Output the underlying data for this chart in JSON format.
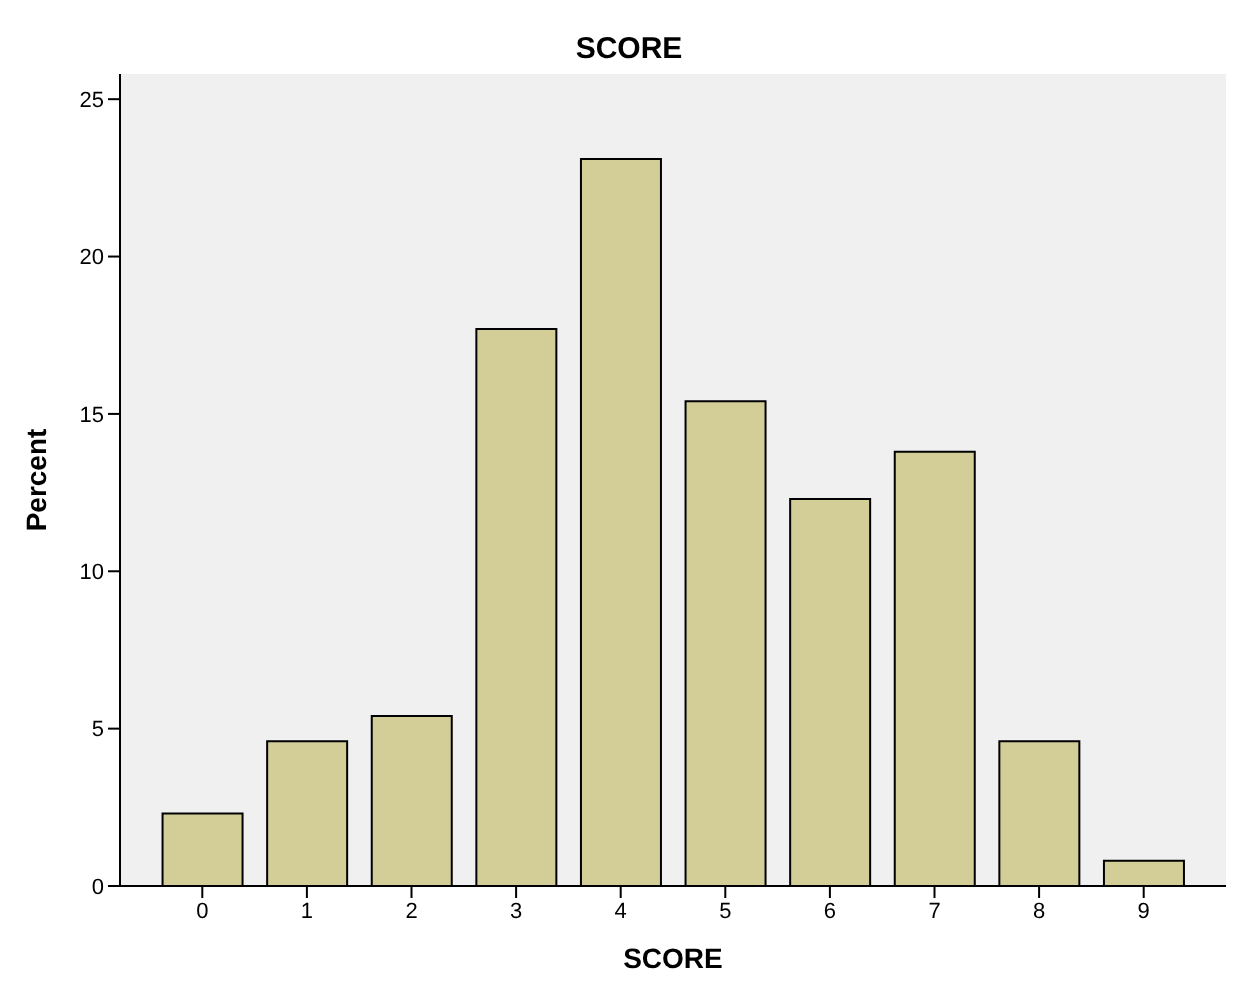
{
  "chart_data": {
    "type": "bar",
    "title": "SCORE",
    "xlabel": "SCORE",
    "ylabel": "Percent",
    "categories": [
      "0",
      "1",
      "2",
      "3",
      "4",
      "5",
      "6",
      "7",
      "8",
      "9"
    ],
    "values": [
      2.3,
      4.6,
      5.4,
      17.7,
      23.1,
      15.4,
      12.3,
      13.8,
      4.6,
      0.8
    ],
    "color": "#d3ce97",
    "ylim": [
      0,
      25.8
    ],
    "yticks": [
      0,
      5,
      10,
      15,
      20,
      25
    ],
    "grid": false
  }
}
